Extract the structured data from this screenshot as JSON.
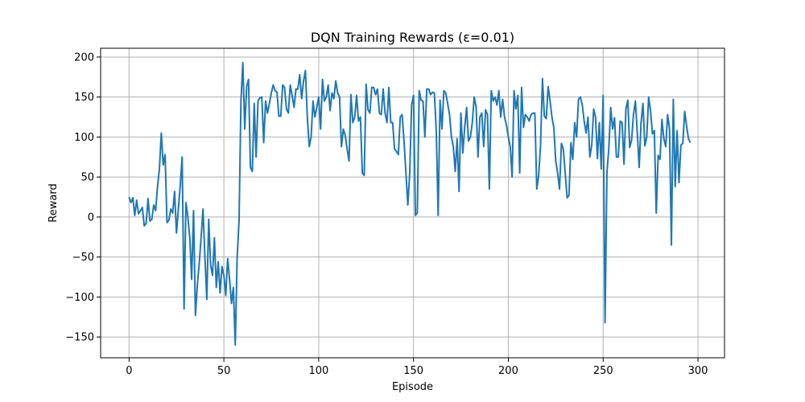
{
  "chart_data": {
    "type": "line",
    "title": "DQN Training Rewards (ε=0.01)",
    "xlabel": "Episode",
    "ylabel": "Reward",
    "xlim": [
      -15,
      314
    ],
    "ylim": [
      -176,
      211
    ],
    "xticks": [
      0,
      50,
      100,
      150,
      200,
      250,
      300
    ],
    "yticks": [
      -150,
      -100,
      -50,
      0,
      50,
      100,
      150,
      200
    ],
    "grid": true,
    "line_color": "#1f77b4",
    "series": [
      {
        "values": [
          25,
          18,
          24,
          2,
          21,
          4,
          8,
          12,
          -11,
          -8,
          23,
          -5,
          -3,
          15,
          8,
          38,
          60,
          105,
          65,
          78,
          -7,
          -4,
          10,
          5,
          32,
          -20,
          10,
          40,
          75,
          -115,
          18,
          0,
          -25,
          -78,
          8,
          -123,
          -85,
          -58,
          -25,
          10,
          -50,
          -103,
          -3,
          -60,
          -73,
          -26,
          -88,
          -56,
          -95,
          -62,
          -73,
          -98,
          -52,
          -78,
          -108,
          -88,
          -160,
          -50,
          -5,
          145,
          193,
          110,
          163,
          172,
          62,
          57,
          142,
          75,
          145,
          149,
          150,
          93,
          145,
          130,
          142,
          155,
          165,
          158,
          156,
          126,
          126,
          165,
          162,
          135,
          130,
          165,
          152,
          137,
          160,
          160,
          178,
          148,
          170,
          183,
          125,
          88,
          100,
          145,
          125,
          137,
          150,
          110,
          172,
          145,
          150,
          165,
          133,
          155,
          148,
          170,
          155,
          150,
          88,
          110,
          102,
          85,
          70,
          153,
          118,
          125,
          152,
          120,
          125,
          55,
          52,
          166,
          134,
          130,
          162,
          162,
          153,
          160,
          130,
          128,
          160,
          130,
          118,
          162,
          118,
          118,
          85,
          82,
          78,
          125,
          128,
          95,
          55,
          15,
          55,
          140,
          152,
          2,
          5,
          158,
          146,
          145,
          100,
          160,
          160,
          153,
          156,
          155,
          108,
          2,
          146,
          110,
          158,
          155,
          142,
          128,
          100,
          88,
          57,
          98,
          32,
          130,
          80,
          112,
          137,
          95,
          100,
          118,
          150,
          138,
          75,
          125,
          130,
          88,
          134,
          128,
          35,
          158,
          145,
          150,
          140,
          158,
          125,
          147,
          125,
          115,
          100,
          88,
          50,
          158,
          135,
          152,
          55,
          162,
          112,
          128,
          125,
          120,
          128,
          130,
          130,
          35,
          52,
          90,
          173,
          126,
          123,
          163,
          145,
          125,
          112,
          70,
          55,
          35,
          92,
          85,
          55,
          24,
          27,
          93,
          72,
          118,
          100,
          147,
          150,
          140,
          120,
          105,
          125,
          75,
          90,
          135,
          125,
          73,
          118,
          60,
          152,
          -132,
          55,
          86,
          137,
          110,
          124,
          75,
          75,
          120,
          118,
          66,
          135,
          146,
          87,
          96,
          128,
          145,
          106,
          62,
          118,
          142,
          89,
          100,
          150,
          133,
          104,
          108,
          5,
          77,
          72,
          122,
          98,
          88,
          128,
          110,
          -35,
          147,
          38,
          108,
          43,
          90,
          92,
          132,
          114,
          98,
          93
        ]
      }
    ]
  }
}
